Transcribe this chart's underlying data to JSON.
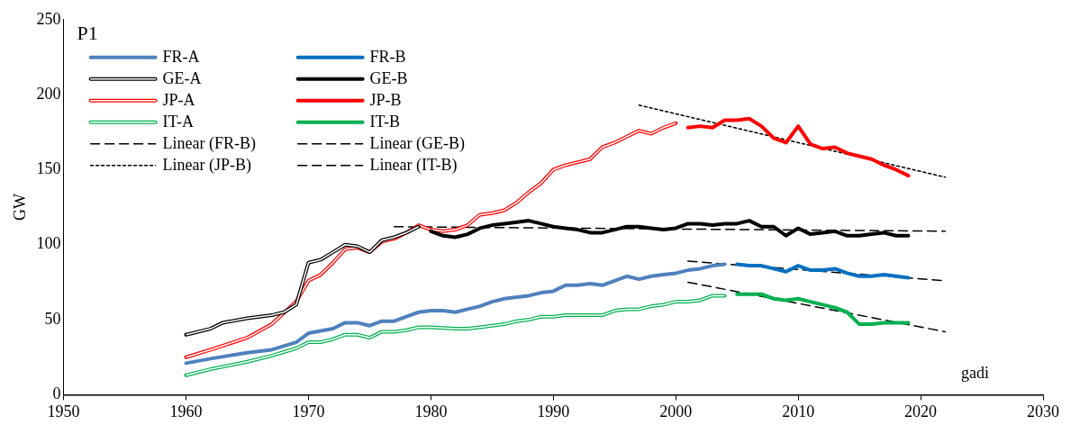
{
  "chart_data": {
    "type": "line",
    "title": "P1",
    "xlabel": "gadi",
    "ylabel": "GW",
    "xlim": [
      1950,
      2030
    ],
    "xticks": [
      1950,
      1960,
      1970,
      1980,
      1990,
      2000,
      2010,
      2020,
      2030
    ],
    "ylim": [
      0,
      250
    ],
    "yticks": [
      0,
      50,
      100,
      150,
      200,
      250
    ],
    "grid": false,
    "legend": "top left",
    "marker": "none",
    "series": [
      {
        "name": "FR-A",
        "color": "#4f81bd",
        "x": [
          1960,
          1962,
          1965,
          1967,
          1969,
          1970,
          1972,
          1973,
          1974,
          1975,
          1976,
          1977,
          1978,
          1979,
          1980,
          1981,
          1982,
          1983,
          1984,
          1985,
          1986,
          1987,
          1988,
          1989,
          1990,
          1991,
          1992,
          1993,
          1994,
          1995,
          1996,
          1997,
          1998,
          1999,
          2000,
          2001,
          2002,
          2003,
          2004
        ],
        "values": [
          21,
          24,
          28,
          30,
          35,
          41,
          44,
          48,
          48,
          46,
          49,
          49,
          52,
          55,
          56,
          56,
          55,
          57,
          59,
          62,
          64,
          65,
          66,
          68,
          69,
          73,
          73,
          74,
          73,
          76,
          79,
          77,
          79,
          80,
          81,
          83,
          84,
          86,
          87
        ]
      },
      {
        "name": "FR-B",
        "color": "#0070c0",
        "x": [
          2005,
          2006,
          2007,
          2008,
          2009,
          2010,
          2011,
          2012,
          2013,
          2014,
          2015,
          2016,
          2017,
          2018,
          2019
        ],
        "values": [
          87,
          86,
          86,
          84,
          82,
          86,
          83,
          83,
          84,
          81,
          79,
          79,
          80,
          79,
          78
        ]
      },
      {
        "name": "GE-A",
        "color": "#000000",
        "x": [
          1960,
          1962,
          1963,
          1965,
          1967,
          1968,
          1969,
          1970,
          1971,
          1972,
          1973,
          1974,
          1975,
          1976,
          1977,
          1978,
          1979
        ],
        "values": [
          40,
          44,
          48,
          51,
          53,
          55,
          60,
          88,
          90,
          95,
          100,
          99,
          95,
          103,
          105,
          108,
          112
        ]
      },
      {
        "name": "GE-B",
        "color": "#000000",
        "x": [
          1980,
          1981,
          1982,
          1983,
          1984,
          1985,
          1986,
          1987,
          1988,
          1989,
          1990,
          1991,
          1992,
          1993,
          1994,
          1995,
          1996,
          1997,
          1998,
          1999,
          2000,
          2001,
          2002,
          2003,
          2004,
          2005,
          2006,
          2007,
          2008,
          2009,
          2010,
          2011,
          2012,
          2013,
          2014,
          2015,
          2016,
          2017,
          2018,
          2019
        ],
        "values": [
          109,
          106,
          105,
          107,
          111,
          113,
          114,
          115,
          116,
          114,
          112,
          111,
          110,
          108,
          108,
          110,
          112,
          112,
          111,
          110,
          111,
          114,
          114,
          113,
          114,
          114,
          116,
          112,
          112,
          106,
          111,
          107,
          108,
          109,
          106,
          106,
          107,
          108,
          106,
          106
        ]
      },
      {
        "name": "JP-A",
        "color": "#ff0000",
        "x": [
          1960,
          1962,
          1965,
          1967,
          1969,
          1970,
          1971,
          1972,
          1973,
          1974,
          1975,
          1976,
          1977,
          1978,
          1979,
          1980,
          1981,
          1982,
          1983,
          1984,
          1985,
          1986,
          1987,
          1988,
          1989,
          1990,
          1991,
          1992,
          1993,
          1994,
          1995,
          1996,
          1997,
          1998,
          1999,
          2000
        ],
        "values": [
          25,
          30,
          38,
          47,
          62,
          76,
          80,
          88,
          97,
          98,
          95,
          102,
          104,
          108,
          113,
          110,
          109,
          110,
          113,
          120,
          121,
          123,
          128,
          135,
          141,
          150,
          153,
          155,
          157,
          165,
          168,
          172,
          176,
          174,
          178,
          181
        ]
      },
      {
        "name": "JP-B",
        "color": "#ff0000",
        "x": [
          2001,
          2002,
          2003,
          2004,
          2005,
          2006,
          2007,
          2008,
          2009,
          2010,
          2011,
          2012,
          2013,
          2014,
          2015,
          2016,
          2017,
          2018,
          2019
        ],
        "values": [
          178,
          179,
          178,
          183,
          183,
          184,
          179,
          171,
          168,
          179,
          167,
          164,
          165,
          161,
          159,
          157,
          153,
          150,
          146
        ]
      },
      {
        "name": "IT-A",
        "color": "#00b050",
        "x": [
          1960,
          1962,
          1965,
          1967,
          1969,
          1970,
          1971,
          1972,
          1973,
          1974,
          1975,
          1976,
          1977,
          1978,
          1979,
          1980,
          1982,
          1983,
          1984,
          1985,
          1986,
          1987,
          1988,
          1989,
          1990,
          1991,
          1992,
          1993,
          1994,
          1995,
          1996,
          1997,
          1998,
          1999,
          2000,
          2001,
          2002,
          2003,
          2004
        ],
        "values": [
          13,
          17,
          22,
          26,
          31,
          35,
          35,
          37,
          40,
          40,
          38,
          42,
          42,
          43,
          45,
          45,
          44,
          44,
          45,
          46,
          47,
          49,
          50,
          52,
          52,
          53,
          53,
          53,
          53,
          56,
          57,
          57,
          59,
          60,
          62,
          62,
          63,
          66,
          66
        ]
      },
      {
        "name": "IT-B",
        "color": "#00b050",
        "x": [
          2005,
          2006,
          2007,
          2008,
          2009,
          2010,
          2011,
          2012,
          2013,
          2014,
          2015,
          2016,
          2017,
          2018,
          2019
        ],
        "values": [
          67,
          67,
          67,
          64,
          63,
          64,
          62,
          60,
          58,
          55,
          47,
          47,
          48,
          48,
          48
        ]
      },
      {
        "name": "Linear (FR-B)",
        "color": "#000000",
        "line_style": "dashed",
        "x": [
          2001,
          2022
        ],
        "values": [
          89,
          76
        ]
      },
      {
        "name": "Linear (GE-B)",
        "color": "#000000",
        "line_style": "dashed",
        "x": [
          1977,
          2022
        ],
        "values": [
          112,
          109
        ]
      },
      {
        "name": "Linear (JP-B)",
        "color": "#000000",
        "line_style": "dotted",
        "x": [
          1997,
          2022
        ],
        "values": [
          193,
          145
        ]
      },
      {
        "name": "Linear (IT-B)",
        "color": "#000000",
        "line_style": "dashed",
        "x": [
          2001,
          2022
        ],
        "values": [
          75,
          42
        ]
      }
    ]
  }
}
